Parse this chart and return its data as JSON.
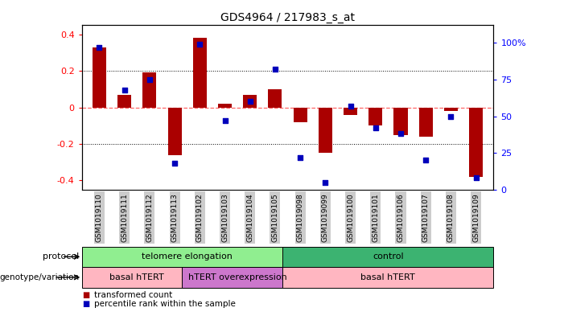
{
  "title": "GDS4964 / 217983_s_at",
  "samples": [
    "GSM1019110",
    "GSM1019111",
    "GSM1019112",
    "GSM1019113",
    "GSM1019102",
    "GSM1019103",
    "GSM1019104",
    "GSM1019105",
    "GSM1019098",
    "GSM1019099",
    "GSM1019100",
    "GSM1019101",
    "GSM1019106",
    "GSM1019107",
    "GSM1019108",
    "GSM1019109"
  ],
  "bar_values": [
    0.33,
    0.07,
    0.19,
    -0.26,
    0.38,
    0.02,
    0.07,
    0.1,
    -0.08,
    -0.25,
    -0.04,
    -0.1,
    -0.15,
    -0.16,
    -0.02,
    -0.38
  ],
  "dot_values": [
    97,
    68,
    75,
    18,
    99,
    47,
    60,
    82,
    22,
    5,
    57,
    42,
    38,
    20,
    50,
    8
  ],
  "protocol_groups": [
    {
      "label": "telomere elongation",
      "start": 0,
      "end": 8,
      "color": "#90EE90"
    },
    {
      "label": "control",
      "start": 8,
      "end": 16,
      "color": "#3CB371"
    }
  ],
  "genotype_groups": [
    {
      "label": "basal hTERT",
      "start": 0,
      "end": 4,
      "color": "#FFB6C1"
    },
    {
      "label": "hTERT overexpression",
      "start": 4,
      "end": 8,
      "color": "#CC77CC"
    },
    {
      "label": "basal hTERT",
      "start": 8,
      "end": 16,
      "color": "#FFB6C1"
    }
  ],
  "bar_color": "#AA0000",
  "dot_color": "#0000BB",
  "ylim": [
    -0.45,
    0.45
  ],
  "y2lim": [
    0,
    112
  ],
  "yticks": [
    -0.4,
    -0.2,
    0.0,
    0.2,
    0.4
  ],
  "y2ticks": [
    0,
    25,
    50,
    75,
    100
  ],
  "y2ticklabels": [
    "0",
    "25",
    "50",
    "75",
    "100%"
  ],
  "hline_color": "#FF6666",
  "grid_color": "#000000",
  "bg_color": "#FFFFFF",
  "label_protocol": "protocol",
  "label_genotype": "genotype/variation",
  "legend_bar": "transformed count",
  "legend_dot": "percentile rank within the sample"
}
